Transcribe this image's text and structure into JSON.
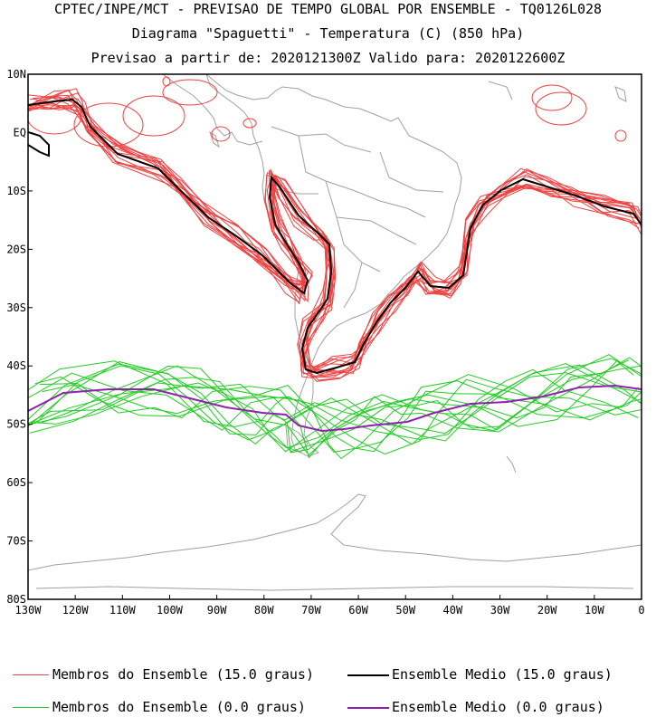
{
  "title": {
    "line1": "CPTEC/INPE/MCT - PREVISAO DE TEMPO GLOBAL POR ENSEMBLE - TQ0126L028",
    "line2": "Diagrama \"Spaguetti\" - Temperatura (C) (850 hPa)",
    "line3": "Previsao a partir de: 2020121300Z  Valido para: 2020122600Z"
  },
  "map": {
    "lat_labels": [
      "10N",
      "EQ",
      "10S",
      "20S",
      "30S",
      "40S",
      "50S",
      "60S",
      "70S",
      "80S"
    ],
    "lon_labels": [
      "130W",
      "120W",
      "110W",
      "100W",
      "90W",
      "80W",
      "70W",
      "60W",
      "50W",
      "40W",
      "30W",
      "20W",
      "10W",
      "0"
    ],
    "lat_range": [
      10,
      -80
    ],
    "lon_range": [
      -130,
      0
    ],
    "colors": {
      "land": "#a0a0a0",
      "member_15": "#f04040",
      "mean_15": "#000000",
      "member_0": "#22cc22",
      "mean_0": "#9020b0"
    }
  },
  "legend": {
    "member_15": "Membros do Ensemble (15.0 graus)",
    "mean_15": "Ensemble Medio (15.0 graus)",
    "member_0": "Membros do Ensemble (0.0 graus)",
    "mean_0": "Ensemble Medio (0.0 graus)"
  }
}
